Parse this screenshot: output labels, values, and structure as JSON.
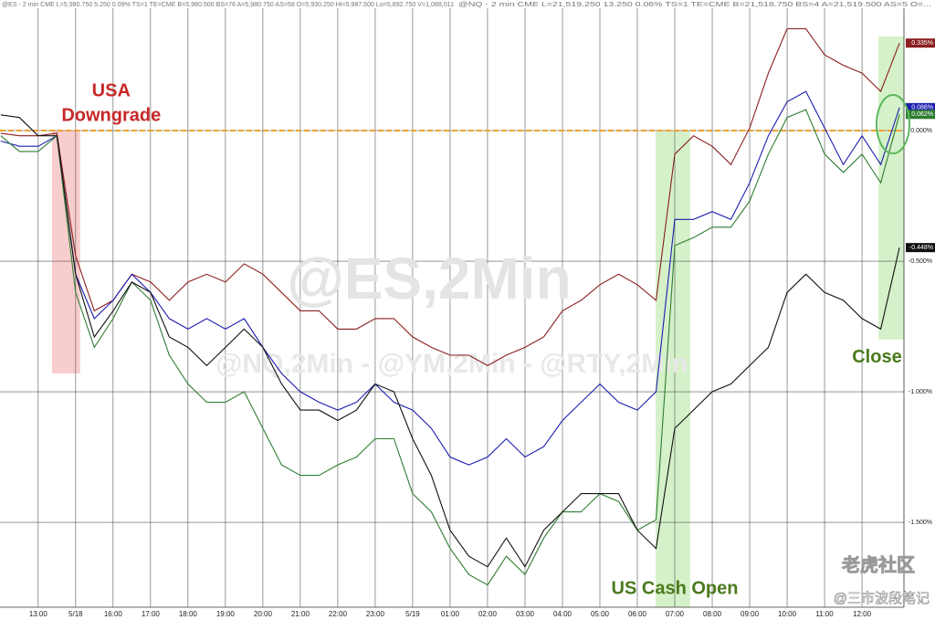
{
  "chart_data": {
    "type": "line",
    "header": [
      "@ES - 2 min CME  L=5,980.750  5.250  0.09%  TS=1  TE=CME  B=5,980.500  BS=76  A=5,980.750  AS=58  O=5,930.250  Hi=5,987.500  Lo=5,892.750  V=1,088,011",
      "@NQ - 2 min CME  L=21,519.250  13.250  0.06%  TS=1  TE=CME  B=21,518.750  BS=4  A=21,519.500  AS=5  O=..."
    ],
    "watermarks": [
      "@ES,2Min",
      "@NQ,2Min - @YM,2Min - @RTY,2Min"
    ],
    "annotations": [
      {
        "text": "USA",
        "x": 1.95,
        "y": 0.15,
        "color": "#c62828"
      },
      {
        "text": "Downgrade",
        "x": 1.95,
        "y": 0.055,
        "color": "#c62828"
      },
      {
        "text": "US Cash Open",
        "x": 17.0,
        "y": -1.755,
        "color": "#4a7a1c"
      },
      {
        "text": "Close",
        "x": 22.4,
        "y": -0.87,
        "color": "#4a7a1c"
      }
    ],
    "credits": [
      "老虎社区",
      "@三市波段笔记"
    ],
    "shaded_regions": [
      {
        "x": [
          0.37,
          1.12
        ],
        "y": [
          0,
          -0.93
        ],
        "color": "#f7c4c4"
      },
      {
        "x": [
          16.49,
          17.41
        ],
        "y": [
          0,
          -1.825
        ],
        "color": "#cdeec0"
      },
      {
        "x": [
          22.44,
          23.12
        ],
        "y": [
          0.36,
          -0.8
        ],
        "color": "#cdeec0"
      }
    ],
    "reference_line": {
      "y": 0,
      "color": "#f0a030"
    },
    "xlim": [
      -1.02,
      23.12
    ],
    "ylim": [
      -1.825,
      0.5
    ],
    "xticks": [
      {
        "value": 0,
        "label": "13:00"
      },
      {
        "value": 1,
        "label": "5/18"
      },
      {
        "value": 2,
        "label": "16:00"
      },
      {
        "value": 3,
        "label": "17:00"
      },
      {
        "value": 4,
        "label": "18:00"
      },
      {
        "value": 5,
        "label": "19:00"
      },
      {
        "value": 6,
        "label": "20:00"
      },
      {
        "value": 7,
        "label": "21:00"
      },
      {
        "value": 8,
        "label": "22:00"
      },
      {
        "value": 9,
        "label": "23:00"
      },
      {
        "value": 10,
        "label": "5/19"
      },
      {
        "value": 11,
        "label": "01:00"
      },
      {
        "value": 12,
        "label": "02:00"
      },
      {
        "value": 13,
        "label": "03:00"
      },
      {
        "value": 14,
        "label": "04:00"
      },
      {
        "value": 15,
        "label": "05:00"
      },
      {
        "value": 16,
        "label": "06:00"
      },
      {
        "value": 17,
        "label": "07:00"
      },
      {
        "value": 18,
        "label": "08:00"
      },
      {
        "value": 19,
        "label": "09:00"
      },
      {
        "value": 20,
        "label": "10:00"
      },
      {
        "value": 21,
        "label": "11:00"
      },
      {
        "value": 22,
        "label": "12:00"
      }
    ],
    "yticks": [
      {
        "value": 0,
        "label": "0.000%"
      },
      {
        "value": -0.5,
        "label": "-0.500%"
      },
      {
        "value": -1,
        "label": "-1.000%"
      },
      {
        "value": -1.5,
        "label": "-1.500%"
      }
    ],
    "grid": true,
    "x": [
      -1,
      -0.5,
      0,
      0.5,
      1,
      1.5,
      2,
      2.5,
      3,
      3.5,
      4,
      4.5,
      5,
      5.5,
      6,
      6.5,
      7,
      7.5,
      8,
      8.5,
      9,
      9.5,
      10,
      10.5,
      11,
      11.5,
      12,
      12.5,
      13,
      13.5,
      14,
      14.5,
      15,
      15.5,
      16,
      16.5,
      17,
      17.5,
      18,
      18.5,
      19,
      19.5,
      20,
      20.5,
      21,
      21.5,
      22,
      22.5,
      23
    ],
    "series": [
      {
        "color": "#8b1e1e",
        "values": [
          -0.01,
          -0.02,
          -0.02,
          -0.01,
          -0.48,
          -0.69,
          -0.65,
          -0.55,
          -0.58,
          -0.65,
          -0.58,
          -0.55,
          -0.58,
          -0.51,
          -0.55,
          -0.62,
          -0.69,
          -0.69,
          -0.76,
          -0.76,
          -0.72,
          -0.72,
          -0.79,
          -0.83,
          -0.86,
          -0.86,
          -0.9,
          -0.86,
          -0.83,
          -0.79,
          -0.69,
          -0.65,
          -0.59,
          -0.55,
          -0.59,
          -0.65,
          -0.09,
          -0.02,
          -0.06,
          -0.13,
          0.01,
          0.22,
          0.39,
          0.39,
          0.29,
          0.25,
          0.22,
          0.15,
          0.335
        ],
        "value_labels": [
          null,
          null,
          null,
          null,
          null,
          null,
          null,
          null,
          null,
          null,
          null,
          null,
          null,
          null,
          null,
          null,
          null,
          null,
          null,
          null,
          null,
          null,
          null,
          null,
          null,
          null,
          null,
          null,
          null,
          null,
          null,
          null,
          null,
          null,
          null,
          null,
          null,
          null,
          null,
          null,
          null,
          null,
          null,
          null,
          null,
          null,
          null,
          null,
          "0.335%"
        ]
      },
      {
        "color": "#1c1cb0",
        "values": [
          -0.04,
          -0.06,
          -0.06,
          -0.02,
          -0.55,
          -0.72,
          -0.65,
          -0.55,
          -0.62,
          -0.72,
          -0.76,
          -0.72,
          -0.76,
          -0.72,
          -0.83,
          -0.93,
          -1.0,
          -1.04,
          -1.07,
          -1.04,
          -0.97,
          -1.04,
          -1.07,
          -1.14,
          -1.25,
          -1.28,
          -1.25,
          -1.18,
          -1.25,
          -1.21,
          -1.11,
          -1.04,
          -0.97,
          -1.04,
          -1.07,
          -1.0,
          -0.34,
          -0.34,
          -0.31,
          -0.34,
          -0.2,
          -0.02,
          0.11,
          0.15,
          0.01,
          -0.13,
          -0.02,
          -0.13,
          0.088
        ],
        "value_labels": [
          null,
          null,
          null,
          null,
          null,
          null,
          null,
          null,
          null,
          null,
          null,
          null,
          null,
          null,
          null,
          null,
          null,
          null,
          null,
          null,
          null,
          null,
          null,
          null,
          null,
          null,
          null,
          null,
          null,
          null,
          null,
          null,
          null,
          null,
          null,
          null,
          null,
          null,
          null,
          null,
          null,
          null,
          null,
          null,
          null,
          null,
          null,
          null,
          "0.088%"
        ]
      },
      {
        "color": "#2e7d32",
        "values": [
          -0.02,
          -0.08,
          -0.08,
          -0.02,
          -0.62,
          -0.83,
          -0.72,
          -0.58,
          -0.65,
          -0.86,
          -0.97,
          -1.04,
          -1.04,
          -1.0,
          -1.14,
          -1.28,
          -1.32,
          -1.32,
          -1.28,
          -1.25,
          -1.18,
          -1.18,
          -1.39,
          -1.46,
          -1.6,
          -1.7,
          -1.74,
          -1.63,
          -1.7,
          -1.56,
          -1.46,
          -1.46,
          -1.39,
          -1.42,
          -1.53,
          -1.49,
          -0.44,
          -0.41,
          -0.37,
          -0.37,
          -0.27,
          -0.09,
          0.05,
          0.08,
          -0.09,
          -0.16,
          -0.09,
          -0.2,
          0.062
        ],
        "value_labels": [
          null,
          null,
          null,
          null,
          null,
          null,
          null,
          null,
          null,
          null,
          null,
          null,
          null,
          null,
          null,
          null,
          null,
          null,
          null,
          null,
          null,
          null,
          null,
          null,
          null,
          null,
          null,
          null,
          null,
          null,
          null,
          null,
          null,
          null,
          null,
          null,
          null,
          null,
          null,
          null,
          null,
          null,
          null,
          null,
          null,
          null,
          null,
          null,
          "0.062%"
        ]
      },
      {
        "color": "#111111",
        "values": [
          0.06,
          0.05,
          -0.02,
          -0.02,
          -0.55,
          -0.79,
          -0.69,
          -0.58,
          -0.62,
          -0.79,
          -0.83,
          -0.9,
          -0.83,
          -0.76,
          -0.83,
          -0.97,
          -1.07,
          -1.07,
          -1.11,
          -1.07,
          -0.97,
          -1.0,
          -1.18,
          -1.32,
          -1.53,
          -1.63,
          -1.67,
          -1.56,
          -1.67,
          -1.53,
          -1.46,
          -1.39,
          -1.39,
          -1.39,
          -1.53,
          -1.6,
          -1.14,
          -1.07,
          -1.0,
          -0.97,
          -0.9,
          -0.83,
          -0.62,
          -0.55,
          -0.62,
          -0.65,
          -0.72,
          -0.76,
          -0.448
        ],
        "value_labels": [
          null,
          null,
          null,
          null,
          null,
          null,
          null,
          null,
          null,
          null,
          null,
          null,
          null,
          null,
          null,
          null,
          null,
          null,
          null,
          null,
          null,
          null,
          null,
          null,
          null,
          null,
          null,
          null,
          null,
          null,
          null,
          null,
          null,
          null,
          null,
          null,
          null,
          null,
          null,
          null,
          null,
          null,
          null,
          null,
          null,
          null,
          null,
          null,
          "-0.448%"
        ]
      }
    ]
  }
}
